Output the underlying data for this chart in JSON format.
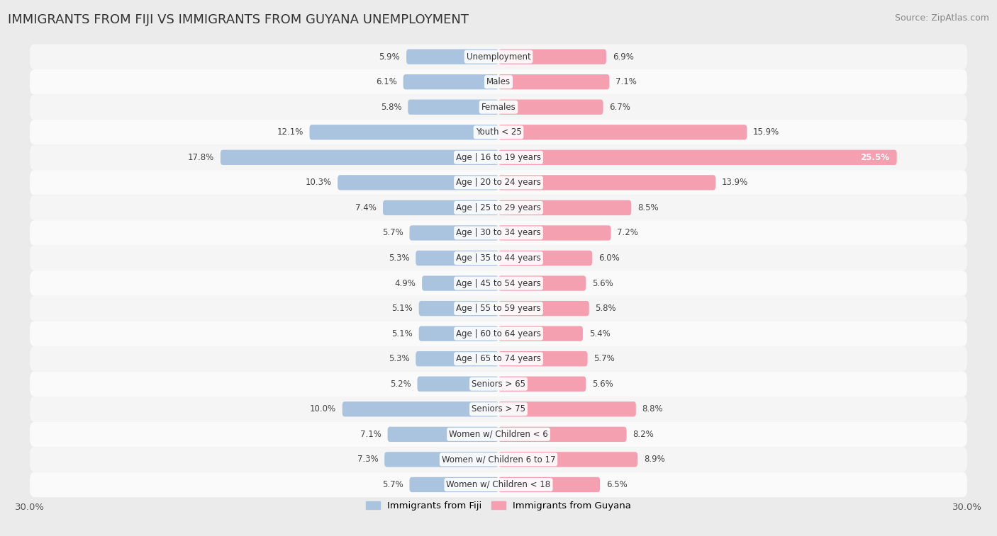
{
  "title": "IMMIGRANTS FROM FIJI VS IMMIGRANTS FROM GUYANA UNEMPLOYMENT",
  "source": "Source: ZipAtlas.com",
  "categories": [
    "Unemployment",
    "Males",
    "Females",
    "Youth < 25",
    "Age | 16 to 19 years",
    "Age | 20 to 24 years",
    "Age | 25 to 29 years",
    "Age | 30 to 34 years",
    "Age | 35 to 44 years",
    "Age | 45 to 54 years",
    "Age | 55 to 59 years",
    "Age | 60 to 64 years",
    "Age | 65 to 74 years",
    "Seniors > 65",
    "Seniors > 75",
    "Women w/ Children < 6",
    "Women w/ Children 6 to 17",
    "Women w/ Children < 18"
  ],
  "fiji_values": [
    5.9,
    6.1,
    5.8,
    12.1,
    17.8,
    10.3,
    7.4,
    5.7,
    5.3,
    4.9,
    5.1,
    5.1,
    5.3,
    5.2,
    10.0,
    7.1,
    7.3,
    5.7
  ],
  "guyana_values": [
    6.9,
    7.1,
    6.7,
    15.9,
    25.5,
    13.9,
    8.5,
    7.2,
    6.0,
    5.6,
    5.8,
    5.4,
    5.7,
    5.6,
    8.8,
    8.2,
    8.9,
    6.5
  ],
  "fiji_color": "#aac4e0",
  "guyana_color": "#f4a0b0",
  "bar_height": 0.6,
  "max_val": 30.0,
  "bg_color": "#ebebeb",
  "row_bg_even": "#f5f5f5",
  "row_bg_odd": "#fafafa",
  "label_font_size": 8.5,
  "title_font_size": 13,
  "source_font_size": 9
}
